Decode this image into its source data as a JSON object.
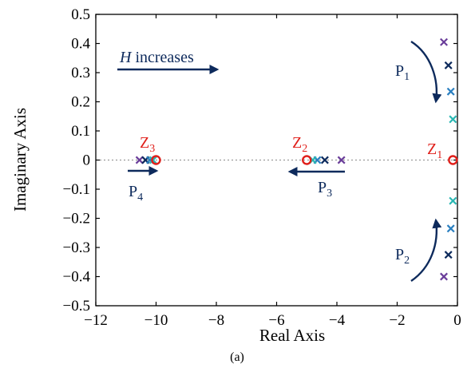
{
  "chart_data": {
    "type": "scatter",
    "title": "",
    "xlabel": "Real Axis",
    "ylabel": "Imaginary Axis",
    "caption": "(a)",
    "xlim": [
      -12,
      0
    ],
    "ylim": [
      -0.5,
      0.5
    ],
    "x_ticks": [
      -12,
      -10,
      -8,
      -6,
      -4,
      -2,
      0
    ],
    "x_tick_labels": [
      "−12",
      "−10",
      "−8",
      "−6",
      "−4",
      "−2",
      "0"
    ],
    "y_ticks": [
      0.5,
      0.4,
      0.3,
      0.2,
      0.1,
      0,
      -0.1,
      -0.2,
      -0.3,
      -0.4,
      -0.5
    ],
    "y_tick_labels": [
      "0.5",
      "0.4",
      "0.3",
      "0.2",
      "0.1",
      "0",
      "−0.1",
      "−0.2",
      "−0.3",
      "−0.4",
      "−0.5"
    ],
    "grid": false,
    "zero_line": "dotted",
    "colors": {
      "purple": "#6a3d9a",
      "navy": "#0d2a5c",
      "blue": "#2a7fc0",
      "cyan": "#2bb7b3",
      "zero_red": "#e0201b"
    },
    "series": [
      {
        "marker": "x",
        "color": "purple",
        "points": [
          [
            -0.45,
            0.405
          ],
          [
            -0.45,
            -0.4
          ],
          [
            -10.55,
            0
          ],
          [
            -3.85,
            0
          ]
        ]
      },
      {
        "marker": "x",
        "color": "navy",
        "points": [
          [
            -0.3,
            0.325
          ],
          [
            -0.3,
            -0.325
          ],
          [
            -10.35,
            0
          ],
          [
            -4.4,
            0
          ]
        ]
      },
      {
        "marker": "x",
        "color": "blue",
        "points": [
          [
            -0.22,
            0.235
          ],
          [
            -0.22,
            -0.235
          ],
          [
            -10.2,
            0
          ],
          [
            -4.65,
            0
          ]
        ]
      },
      {
        "marker": "x",
        "color": "cyan",
        "points": [
          [
            -0.15,
            0.14
          ],
          [
            -0.15,
            -0.14
          ],
          [
            -10.1,
            0
          ],
          [
            -4.8,
            0
          ]
        ]
      },
      {
        "marker": "o",
        "color": "zero_red",
        "points": [
          [
            -0.15,
            0
          ],
          [
            -5.0,
            0
          ],
          [
            -10.0,
            0
          ]
        ]
      }
    ],
    "annotations": {
      "h_increases": {
        "italic": "H",
        "text": " increases"
      },
      "labels": [
        {
          "main": "Z",
          "sub": "1",
          "color": "zero_red"
        },
        {
          "main": "Z",
          "sub": "2",
          "color": "zero_red"
        },
        {
          "main": "Z",
          "sub": "3",
          "color": "zero_red"
        },
        {
          "main": "P",
          "sub": "1",
          "color": "navy"
        },
        {
          "main": "P",
          "sub": "2",
          "color": "navy"
        },
        {
          "main": "P",
          "sub": "3",
          "color": "navy"
        },
        {
          "main": "P",
          "sub": "4",
          "color": "navy"
        }
      ]
    }
  }
}
